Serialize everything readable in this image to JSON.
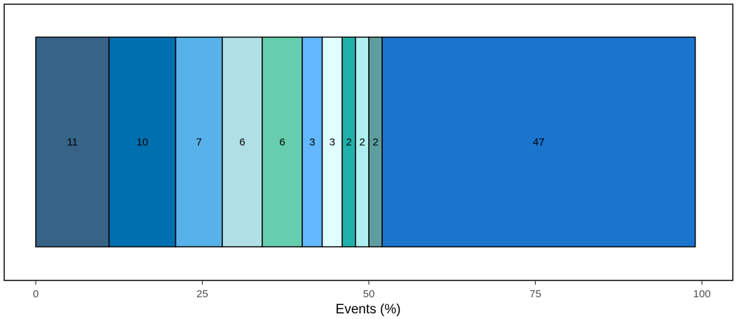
{
  "chart_data": {
    "type": "bar",
    "orientation": "horizontal-stacked",
    "xlabel": "Events (%)",
    "ylabel": "",
    "xlim": [
      0,
      100
    ],
    "x_ticks": [
      0,
      25,
      50,
      75,
      100
    ],
    "x_tick_labels": [
      "0",
      "25",
      "50",
      "75",
      "100"
    ],
    "grid": false,
    "legend": "none",
    "segments": [
      {
        "value": 11,
        "label": "11",
        "color": "#376387"
      },
      {
        "value": 10,
        "label": "10",
        "color": "#006faf"
      },
      {
        "value": 7,
        "label": "7",
        "color": "#56b2e8"
      },
      {
        "value": 6,
        "label": "6",
        "color": "#b0dfe6"
      },
      {
        "value": 6,
        "label": "6",
        "color": "#66ceac"
      },
      {
        "value": 3,
        "label": "3",
        "color": "#63b8ff"
      },
      {
        "value": 3,
        "label": "3",
        "color": "#e0ffff"
      },
      {
        "value": 2,
        "label": "2",
        "color": "#20b2aa"
      },
      {
        "value": 2,
        "label": "2",
        "color": "#aeeeee"
      },
      {
        "value": 2,
        "label": "2",
        "color": "#5f9ea0"
      },
      {
        "value": 47,
        "label": "47",
        "color": "#1b74cd"
      }
    ]
  }
}
